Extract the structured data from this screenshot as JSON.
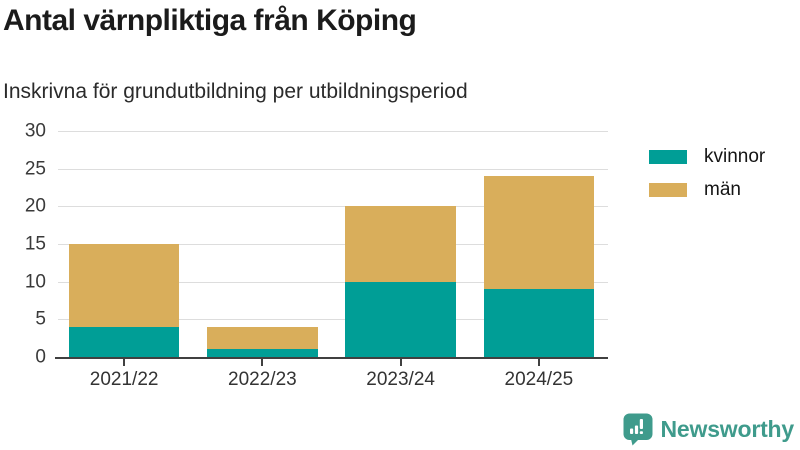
{
  "header": {
    "title": "Antal värnpliktiga från Köping",
    "subtitle": "Inskrivna för grundutbildning per utbildningsperiod"
  },
  "chart_data": {
    "type": "bar",
    "stacked": true,
    "title": "Antal värnpliktiga från Köping",
    "subtitle": "Inskrivna för grundutbildning per utbildningsperiod",
    "categories": [
      "2021/22",
      "2022/23",
      "2023/24",
      "2024/25"
    ],
    "series": [
      {
        "name": "kvinnor",
        "color": "#009E96",
        "values": [
          4,
          1,
          10,
          9
        ]
      },
      {
        "name": "män",
        "color": "#D9AE5B",
        "values": [
          11,
          3,
          10,
          15
        ]
      }
    ],
    "stack_totals": [
      15,
      4,
      20,
      24
    ],
    "xlabel": "",
    "ylabel": "",
    "ylim": [
      0,
      30
    ],
    "yticks": [
      0,
      5,
      10,
      15,
      20,
      25,
      30
    ],
    "grid": true,
    "legend_position": "top-right",
    "axis_color": "#404040",
    "grid_color": "#DDDDDD",
    "tick_label_color": "#3a3a3a"
  },
  "footer": {
    "brand": "Newsworthy",
    "brand_color": "#3F9B8C",
    "logo_icon": "bar-chart-speech-bubble-icon"
  }
}
